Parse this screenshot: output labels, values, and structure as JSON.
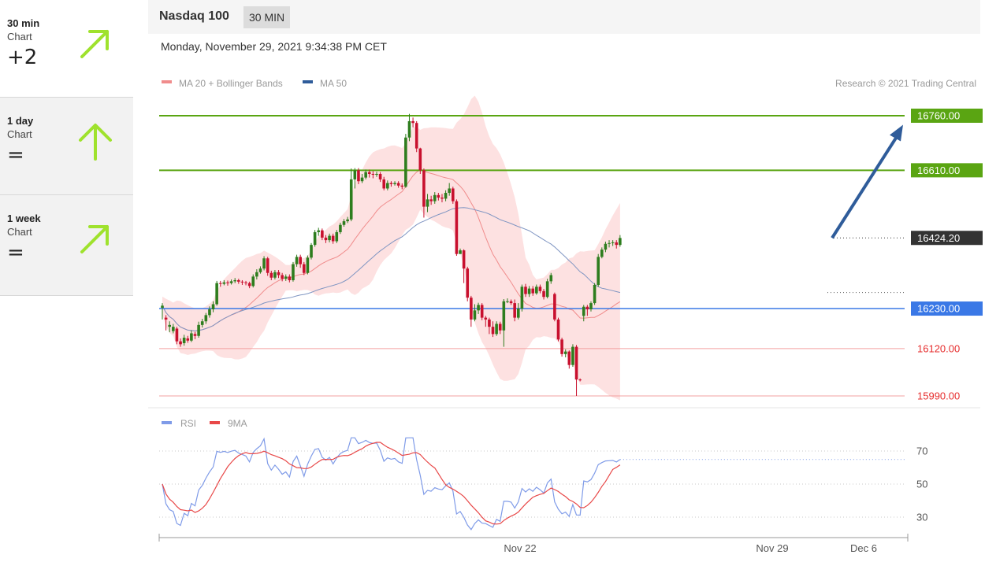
{
  "sidebar": {
    "items": [
      {
        "period": "30 min",
        "sub": "Chart",
        "value": "+2",
        "arrow": "up-right",
        "active": true
      },
      {
        "period": "1 day",
        "sub": "Chart",
        "value": "=",
        "arrow": "up",
        "active": false
      },
      {
        "period": "1 week",
        "sub": "Chart",
        "value": "=",
        "arrow": "up-right",
        "active": false
      }
    ],
    "arrow_color": "#9fe22d"
  },
  "header": {
    "title": "Nasdaq 100",
    "timeframe": "30 MIN"
  },
  "date_line": "Monday, November 29, 2021 9:34:38 PM CET",
  "legend": {
    "items": [
      {
        "label": "MA 20 + Bollinger Bands",
        "color": "#f08c8c"
      },
      {
        "label": "MA 50",
        "color": "#2f5c9a"
      }
    ],
    "credit": "Research © 2021 Trading Central"
  },
  "colors": {
    "up": "#2e7d1e",
    "down": "#c8102e",
    "resistance": "#5aa512",
    "support": "#3a78e6",
    "pivot": "#333333",
    "band": "#fde1e1",
    "ma20": "#f08c8c",
    "ma50": "#7f95c2",
    "projection": "#2f5c9a"
  },
  "chart_data": [
    {
      "type": "candlestick",
      "title": "Nasdaq 100",
      "ylim": [
        15985,
        16790
      ],
      "x_ticks": [
        "Nov 22",
        "Nov 29",
        "Dec 6"
      ],
      "levels": [
        {
          "label": "16760.00",
          "value": 16760,
          "kind": "resistance"
        },
        {
          "label": "16610.00",
          "value": 16610,
          "kind": "resistance"
        },
        {
          "label": "16424.20",
          "value": 16424.2,
          "kind": "current"
        },
        {
          "label": "16230.00",
          "value": 16230,
          "kind": "support"
        },
        {
          "label": "16120.00",
          "value": 16120,
          "kind": "support-minor"
        },
        {
          "label": "15990.00",
          "value": 15990,
          "kind": "support-minor"
        }
      ],
      "projection": {
        "from": 16424.2,
        "to": 16735
      },
      "candles": [
        [
          16232,
          16238,
          16200,
          16245
        ],
        [
          16205,
          16200,
          16170,
          16212
        ],
        [
          16180,
          16185,
          16165,
          16195
        ],
        [
          16168,
          16180,
          16162,
          16188
        ],
        [
          16175,
          16140,
          16132,
          16180
        ],
        [
          16140,
          16132,
          16125,
          16148
        ],
        [
          16135,
          16150,
          16128,
          16158
        ],
        [
          16148,
          16142,
          16136,
          16155
        ],
        [
          16142,
          16162,
          16138,
          16170
        ],
        [
          16160,
          16155,
          16146,
          16166
        ],
        [
          16155,
          16185,
          16150,
          16194
        ],
        [
          16185,
          16195,
          16178,
          16202
        ],
        [
          16195,
          16212,
          16188,
          16218
        ],
        [
          16212,
          16228,
          16205,
          16236
        ],
        [
          16228,
          16242,
          16220,
          16250
        ],
        [
          16242,
          16300,
          16238,
          16306
        ],
        [
          16300,
          16298,
          16290,
          16306
        ],
        [
          16298,
          16302,
          16294,
          16308
        ],
        [
          16302,
          16300,
          16293,
          16307
        ],
        [
          16300,
          16305,
          16296,
          16310
        ],
        [
          16305,
          16308,
          16300,
          16314
        ],
        [
          16308,
          16304,
          16298,
          16312
        ],
        [
          16304,
          16302,
          16295,
          16308
        ],
        [
          16302,
          16300,
          16294,
          16306
        ],
        [
          16300,
          16292,
          16286,
          16304
        ],
        [
          16292,
          16318,
          16288,
          16324
        ],
        [
          16318,
          16330,
          16310,
          16338
        ],
        [
          16330,
          16340,
          16326,
          16346
        ],
        [
          16340,
          16368,
          16335,
          16374
        ],
        [
          16368,
          16328,
          16320,
          16372
        ],
        [
          16328,
          16315,
          16308,
          16334
        ],
        [
          16315,
          16330,
          16310,
          16336
        ],
        [
          16330,
          16322,
          16314,
          16336
        ],
        [
          16322,
          16312,
          16305,
          16328
        ],
        [
          16312,
          16318,
          16306,
          16324
        ],
        [
          16318,
          16308,
          16302,
          16324
        ],
        [
          16308,
          16352,
          16304,
          16358
        ],
        [
          16352,
          16372,
          16345,
          16378
        ],
        [
          16372,
          16352,
          16342,
          16378
        ],
        [
          16352,
          16328,
          16322,
          16358
        ],
        [
          16328,
          16370,
          16324,
          16376
        ],
        [
          16370,
          16405,
          16365,
          16410
        ],
        [
          16405,
          16440,
          16400,
          16446
        ],
        [
          16440,
          16445,
          16430,
          16452
        ],
        [
          16445,
          16425,
          16418,
          16450
        ],
        [
          16425,
          16418,
          16410,
          16432
        ],
        [
          16418,
          16430,
          16412,
          16436
        ],
        [
          16430,
          16415,
          16408,
          16436
        ],
        [
          16415,
          16440,
          16410,
          16446
        ],
        [
          16440,
          16460,
          16435,
          16466
        ],
        [
          16460,
          16470,
          16455,
          16476
        ],
        [
          16470,
          16475,
          16465,
          16482
        ],
        [
          16475,
          16585,
          16470,
          16615
        ],
        [
          16585,
          16610,
          16560,
          16616
        ],
        [
          16610,
          16580,
          16572,
          16616
        ],
        [
          16580,
          16590,
          16575,
          16600
        ],
        [
          16590,
          16605,
          16585,
          16612
        ],
        [
          16605,
          16600,
          16590,
          16612
        ],
        [
          16600,
          16598,
          16588,
          16608
        ],
        [
          16598,
          16600,
          16592,
          16606
        ],
        [
          16600,
          16585,
          16578,
          16605
        ],
        [
          16585,
          16560,
          16555,
          16592
        ],
        [
          16560,
          16575,
          16555,
          16582
        ],
        [
          16575,
          16572,
          16565,
          16580
        ],
        [
          16572,
          16575,
          16568,
          16580
        ],
        [
          16575,
          16568,
          16562,
          16580
        ],
        [
          16568,
          16565,
          16558,
          16574
        ],
        [
          16565,
          16700,
          16562,
          16710
        ],
        [
          16700,
          16745,
          16690,
          16765
        ],
        [
          16745,
          16740,
          16728,
          16755
        ],
        [
          16740,
          16670,
          16660,
          16745
        ],
        [
          16670,
          16610,
          16600,
          16672
        ],
        [
          16610,
          16510,
          16480,
          16615
        ],
        [
          16510,
          16530,
          16495,
          16545
        ],
        [
          16530,
          16525,
          16515,
          16540
        ],
        [
          16525,
          16542,
          16518,
          16550
        ],
        [
          16542,
          16535,
          16527,
          16548
        ],
        [
          16535,
          16532,
          16522,
          16545
        ],
        [
          16532,
          16548,
          16525,
          16555
        ],
        [
          16548,
          16560,
          16540,
          16575
        ],
        [
          16560,
          16525,
          16518,
          16565
        ],
        [
          16525,
          16380,
          16375,
          16530
        ],
        [
          16380,
          16390,
          16385,
          16395
        ],
        [
          16390,
          16340,
          16300,
          16393
        ],
        [
          16340,
          16260,
          16250,
          16345
        ],
        [
          16260,
          16200,
          16180,
          16265
        ],
        [
          16200,
          16225,
          16195,
          16242
        ],
        [
          16225,
          16240,
          16215,
          16246
        ],
        [
          16240,
          16205,
          16198,
          16245
        ],
        [
          16205,
          16200,
          16180,
          16210
        ],
        [
          16200,
          16180,
          16160,
          16205
        ],
        [
          16180,
          16160,
          16152,
          16195
        ],
        [
          16160,
          16188,
          16155,
          16195
        ],
        [
          16188,
          16170,
          16160,
          16194
        ],
        [
          16170,
          16250,
          16125,
          16256
        ],
        [
          16250,
          16250,
          16245,
          16258
        ],
        [
          16250,
          16245,
          16240,
          16255
        ],
        [
          16245,
          16205,
          16195,
          16255
        ],
        [
          16205,
          16230,
          16200,
          16245
        ],
        [
          16230,
          16290,
          16222,
          16296
        ],
        [
          16290,
          16270,
          16262,
          16298
        ],
        [
          16270,
          16285,
          16262,
          16292
        ],
        [
          16285,
          16272,
          16265,
          16292
        ],
        [
          16272,
          16290,
          16268,
          16296
        ],
        [
          16290,
          16278,
          16272,
          16296
        ],
        [
          16278,
          16262,
          16255,
          16284
        ],
        [
          16262,
          16305,
          16258,
          16312
        ],
        [
          16305,
          16322,
          16298,
          16328
        ],
        [
          16270,
          16200,
          16195,
          16274
        ],
        [
          16200,
          16145,
          16140,
          16205
        ],
        [
          16145,
          16105,
          16098,
          16150
        ],
        [
          16105,
          16112,
          16096,
          16118
        ],
        [
          16112,
          16075,
          16065,
          16115
        ],
        [
          16075,
          16125,
          16070,
          16132
        ],
        [
          16125,
          16035,
          15990,
          16130
        ],
        [
          16035,
          16033,
          16030,
          16038
        ],
        [
          16210,
          16235,
          16195,
          16240
        ],
        [
          16235,
          16228,
          16210,
          16240
        ],
        [
          16228,
          16245,
          16222,
          16250
        ],
        [
          16245,
          16295,
          16240,
          16300
        ],
        [
          16295,
          16372,
          16290,
          16380
        ],
        [
          16372,
          16392,
          16368,
          16398
        ],
        [
          16392,
          16408,
          16385,
          16414
        ],
        [
          16408,
          16410,
          16398,
          16418
        ],
        [
          16410,
          16412,
          16402,
          16418
        ],
        [
          16412,
          16405,
          16395,
          16418
        ],
        [
          16405,
          16424,
          16400,
          16432
        ]
      ]
    },
    {
      "type": "line",
      "x_ticks": [
        "Nov 22",
        "Nov 29",
        "Dec 6"
      ],
      "ylim": [
        20,
        80
      ],
      "y_ticks": [
        30,
        50,
        70
      ],
      "series": [
        {
          "name": "RSI",
          "color": "#7f9be8"
        },
        {
          "name": "9MA",
          "color": "#e84848"
        }
      ]
    }
  ]
}
